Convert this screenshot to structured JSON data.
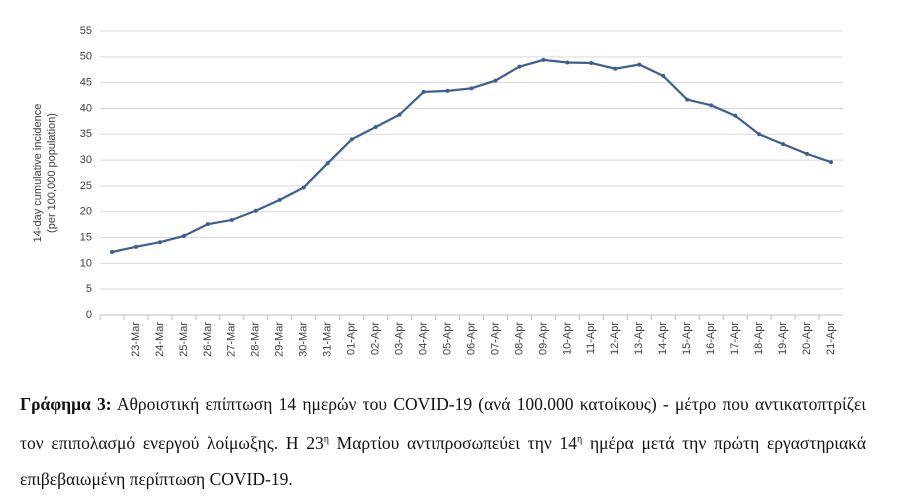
{
  "chart_data": {
    "type": "line",
    "y_label": [
      "14-day cumulative incidence",
      "(per 100,000 population)"
    ],
    "categories": [
      null,
      "23-Mar",
      "24-Mar",
      "25-Mar",
      "26-Mar",
      "27-Mar",
      "28-Mar",
      "29-Mar",
      "30-Mar",
      "31-Mar",
      "01-Apr",
      "02-Apr",
      "03-Apr",
      "04-Apr",
      "05-Apr",
      "06-Apr",
      "07-Apr",
      "08-Apr",
      "09-Apr",
      "10-Apr",
      "11-Apr",
      "12-Apr",
      "13-Apr",
      "14-Apr",
      "15-Apr",
      "16-Apr",
      "17-Apr",
      "18-Apr",
      "19-Apr",
      "20-Apr",
      "21-Apr"
    ],
    "values": [
      12.2,
      13.2,
      14.1,
      15.3,
      17.6,
      18.4,
      20.2,
      22.3,
      24.7,
      29.4,
      34.0,
      36.4,
      38.8,
      43.2,
      43.4,
      43.9,
      45.4,
      48.1,
      49.4,
      48.9,
      48.8,
      47.7,
      48.5,
      46.3,
      41.7,
      40.6,
      38.6,
      35.0,
      33.1,
      31.2,
      29.6
    ],
    "color": "#3b5f94",
    "ylim": [
      0,
      55
    ],
    "yticks": [
      0,
      5,
      10,
      15,
      20,
      25,
      30,
      35,
      40,
      45,
      50,
      55
    ],
    "grid": true
  },
  "caption": {
    "label": "Γράφημα 3:",
    "parts": [
      " Αθροιστική επίπτωση 14 ημερών του COVID-19 (ανά 100.000 κατοίκους) - μέτρο που αντικατοπτρίζει τον επιπολασμό ενεργού λοίμωξης. Η 23",
      "η",
      " Μαρτίου αντιπροσωπεύει την 14",
      "η",
      " ημέρα μετά την πρώτη εργαστηριακά επιβεβαιωμένη περίπτωση COVID-19."
    ]
  }
}
